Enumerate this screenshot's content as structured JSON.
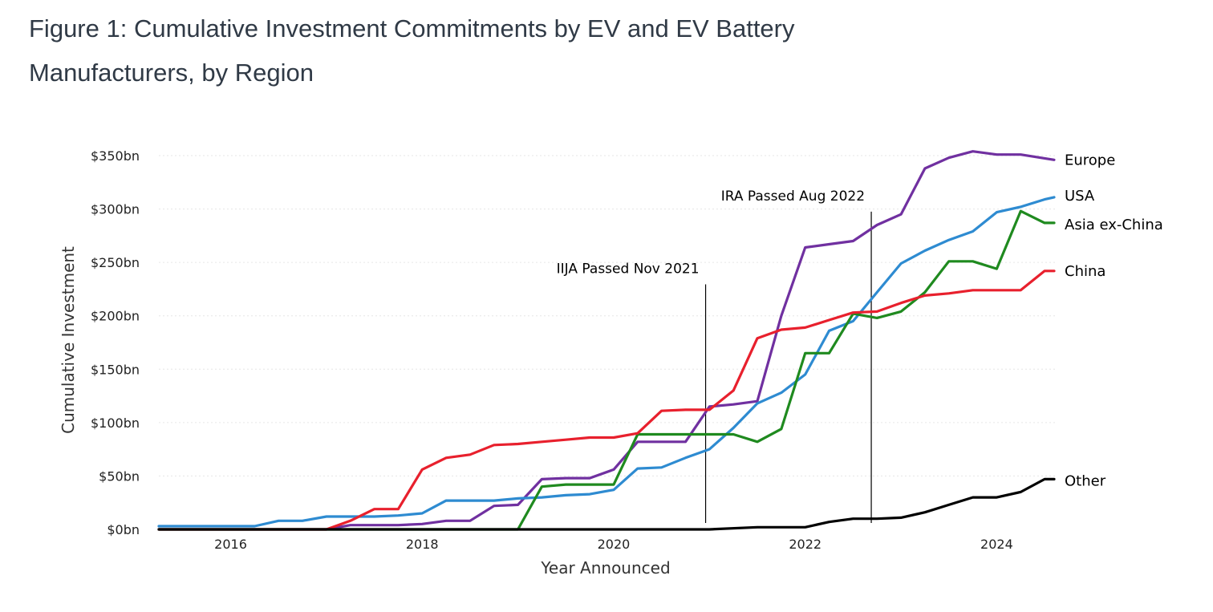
{
  "figure": {
    "title": "Figure 1: Cumulative Investment Commitments by EV and EV Battery Manufacturers, by Region"
  },
  "chart_data": {
    "type": "line",
    "title": "Figure 1: Cumulative Investment Commitments by EV and EV Battery Manufacturers, by Region",
    "xlabel": "Year Announced",
    "ylabel": "Cumulative Investment",
    "xlim": [
      2015.25,
      2024.65
    ],
    "ylim": [
      0,
      350
    ],
    "x_ticks": [
      2016,
      2018,
      2020,
      2022,
      2024
    ],
    "x_tick_labels": [
      "2016",
      "2018",
      "2020",
      "2022",
      "2024"
    ],
    "y_ticks": [
      0,
      50,
      100,
      150,
      200,
      250,
      300,
      350
    ],
    "y_tick_labels": [
      "$0bn",
      "$50bn",
      "$100bn",
      "$150bn",
      "$200bn",
      "$250bn",
      "$300bn",
      "$350bn"
    ],
    "grid": true,
    "legend": "labels at line ends (right)",
    "series": [
      {
        "name": "Europe",
        "color": "#7030a0",
        "points": [
          [
            2015.25,
            0
          ],
          [
            2016.25,
            0
          ],
          [
            2017.0,
            0
          ],
          [
            2017.25,
            4
          ],
          [
            2017.5,
            4
          ],
          [
            2017.75,
            4
          ],
          [
            2018.0,
            5
          ],
          [
            2018.25,
            8
          ],
          [
            2018.5,
            8
          ],
          [
            2018.75,
            22
          ],
          [
            2019.0,
            23
          ],
          [
            2019.25,
            47
          ],
          [
            2019.5,
            48
          ],
          [
            2019.75,
            48
          ],
          [
            2020.0,
            56
          ],
          [
            2020.25,
            82
          ],
          [
            2020.5,
            82
          ],
          [
            2020.75,
            82
          ],
          [
            2021.0,
            115
          ],
          [
            2021.25,
            117
          ],
          [
            2021.5,
            120
          ],
          [
            2021.75,
            200
          ],
          [
            2022.0,
            264
          ],
          [
            2022.25,
            267
          ],
          [
            2022.5,
            270
          ],
          [
            2022.75,
            285
          ],
          [
            2023.0,
            295
          ],
          [
            2023.25,
            338
          ],
          [
            2023.5,
            348
          ],
          [
            2023.75,
            354
          ],
          [
            2024.0,
            351
          ],
          [
            2024.25,
            351
          ],
          [
            2024.6,
            346
          ]
        ]
      },
      {
        "name": "USA",
        "color": "#2e8bd1",
        "points": [
          [
            2015.25,
            3
          ],
          [
            2016.25,
            3
          ],
          [
            2016.5,
            8
          ],
          [
            2016.75,
            8
          ],
          [
            2017.0,
            12
          ],
          [
            2017.25,
            12
          ],
          [
            2017.5,
            12
          ],
          [
            2017.75,
            13
          ],
          [
            2018.0,
            15
          ],
          [
            2018.25,
            27
          ],
          [
            2018.5,
            27
          ],
          [
            2018.75,
            27
          ],
          [
            2019.0,
            29
          ],
          [
            2019.25,
            30
          ],
          [
            2019.5,
            32
          ],
          [
            2019.75,
            33
          ],
          [
            2020.0,
            37
          ],
          [
            2020.25,
            57
          ],
          [
            2020.5,
            58
          ],
          [
            2020.75,
            67
          ],
          [
            2021.0,
            75
          ],
          [
            2021.25,
            95
          ],
          [
            2021.5,
            118
          ],
          [
            2021.75,
            128
          ],
          [
            2022.0,
            145
          ],
          [
            2022.25,
            186
          ],
          [
            2022.5,
            195
          ],
          [
            2022.75,
            222
          ],
          [
            2023.0,
            249
          ],
          [
            2023.25,
            261
          ],
          [
            2023.5,
            271
          ],
          [
            2023.75,
            279
          ],
          [
            2024.0,
            297
          ],
          [
            2024.25,
            302
          ],
          [
            2024.5,
            309
          ],
          [
            2024.6,
            311
          ]
        ]
      },
      {
        "name": "Asia ex-China",
        "color": "#1f8a1f",
        "points": [
          [
            2015.25,
            0
          ],
          [
            2019.0,
            0
          ],
          [
            2019.25,
            40
          ],
          [
            2019.5,
            42
          ],
          [
            2019.75,
            42
          ],
          [
            2020.0,
            42
          ],
          [
            2020.25,
            89
          ],
          [
            2020.5,
            89
          ],
          [
            2020.75,
            89
          ],
          [
            2021.0,
            89
          ],
          [
            2021.25,
            89
          ],
          [
            2021.5,
            82
          ],
          [
            2021.75,
            94
          ],
          [
            2022.0,
            165
          ],
          [
            2022.25,
            165
          ],
          [
            2022.5,
            202
          ],
          [
            2022.75,
            198
          ],
          [
            2023.0,
            204
          ],
          [
            2023.25,
            222
          ],
          [
            2023.5,
            251
          ],
          [
            2023.75,
            251
          ],
          [
            2024.0,
            244
          ],
          [
            2024.25,
            298
          ],
          [
            2024.5,
            287
          ],
          [
            2024.6,
            287
          ]
        ]
      },
      {
        "name": "China",
        "color": "#e8202d",
        "points": [
          [
            2015.25,
            0
          ],
          [
            2017.0,
            0
          ],
          [
            2017.25,
            8
          ],
          [
            2017.5,
            19
          ],
          [
            2017.75,
            19
          ],
          [
            2018.0,
            56
          ],
          [
            2018.25,
            67
          ],
          [
            2018.5,
            70
          ],
          [
            2018.75,
            79
          ],
          [
            2019.0,
            80
          ],
          [
            2019.25,
            82
          ],
          [
            2019.5,
            84
          ],
          [
            2019.75,
            86
          ],
          [
            2020.0,
            86
          ],
          [
            2020.25,
            90
          ],
          [
            2020.5,
            111
          ],
          [
            2020.75,
            112
          ],
          [
            2021.0,
            112
          ],
          [
            2021.25,
            130
          ],
          [
            2021.5,
            179
          ],
          [
            2021.75,
            187
          ],
          [
            2022.0,
            189
          ],
          [
            2022.25,
            196
          ],
          [
            2022.5,
            203
          ],
          [
            2022.75,
            204
          ],
          [
            2023.0,
            212
          ],
          [
            2023.25,
            219
          ],
          [
            2023.5,
            221
          ],
          [
            2023.75,
            224
          ],
          [
            2024.0,
            224
          ],
          [
            2024.25,
            224
          ],
          [
            2024.5,
            242
          ],
          [
            2024.6,
            242
          ]
        ]
      },
      {
        "name": "Other",
        "color": "#000000",
        "points": [
          [
            2015.25,
            0
          ],
          [
            2021.0,
            0
          ],
          [
            2021.5,
            2
          ],
          [
            2022.0,
            2
          ],
          [
            2022.25,
            7
          ],
          [
            2022.5,
            10
          ],
          [
            2022.75,
            10
          ],
          [
            2023.0,
            11
          ],
          [
            2023.25,
            16
          ],
          [
            2023.5,
            23
          ],
          [
            2023.75,
            30
          ],
          [
            2024.0,
            30
          ],
          [
            2024.25,
            35
          ],
          [
            2024.5,
            47
          ],
          [
            2024.6,
            47
          ]
        ]
      }
    ],
    "annotations": [
      {
        "text": "IIJA Passed Nov 2021",
        "x": 2020.96,
        "y": 240
      },
      {
        "text": "IRA Passed Aug 2022",
        "x": 2022.69,
        "y": 308
      }
    ]
  }
}
